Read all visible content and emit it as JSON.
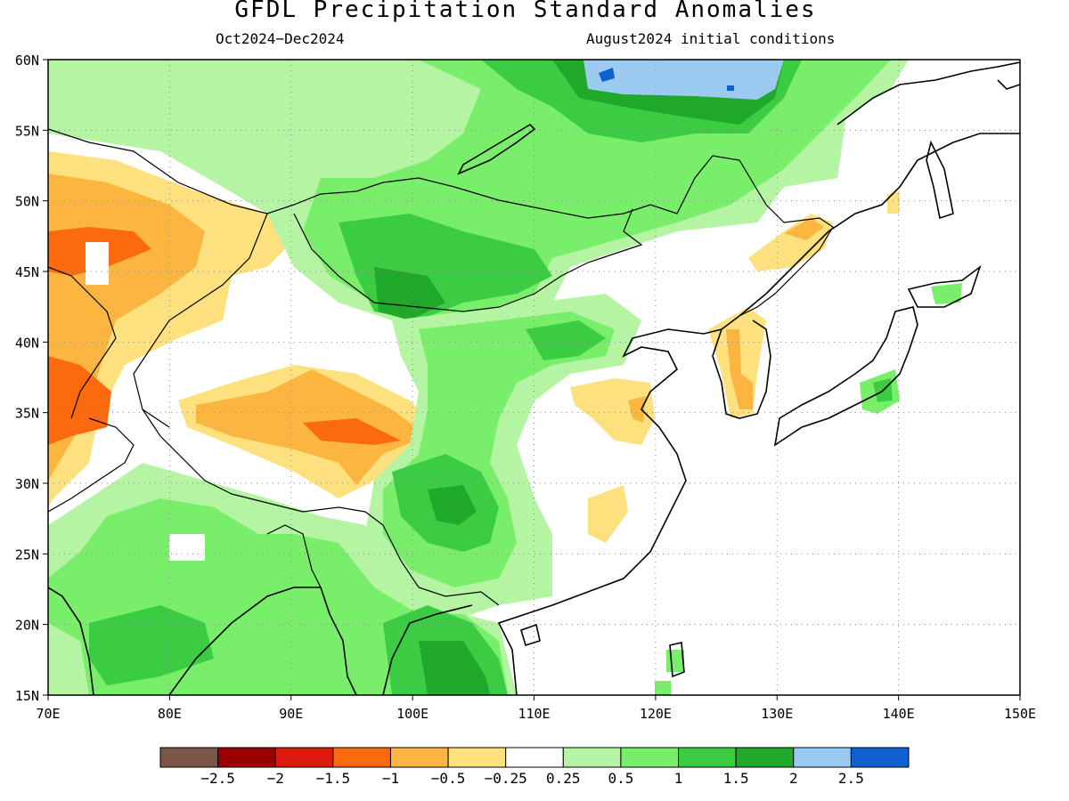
{
  "title": "GFDL Precipitation Standard Anomalies",
  "subtitle_left": "Oct2024−Dec2024",
  "subtitle_right": "August2024 initial conditions",
  "map": {
    "lon_range": [
      70,
      150
    ],
    "lat_range": [
      15,
      60
    ],
    "lon_ticks": [
      "70E",
      "80E",
      "90E",
      "100E",
      "110E",
      "120E",
      "130E",
      "140E",
      "150E"
    ],
    "lat_ticks": [
      "15N",
      "20N",
      "25N",
      "30N",
      "35N",
      "40N",
      "45N",
      "50N",
      "55N",
      "60N"
    ],
    "grid": "dotted",
    "palette": {
      "very_dry": "#7a5548",
      "dry_25": "#9b0000",
      "dry_2": "#dd1b0a",
      "dry_15": "#fb6a0c",
      "dry_1": "#fcb541",
      "dry_05": "#fde17e",
      "neutral": "#ffffff",
      "wet_025": "#b4f4a2",
      "wet_05": "#78ee6b",
      "wet_1": "#3bcc44",
      "wet_15": "#1fa82a",
      "wet_2": "#9ccbf2",
      "wet_25": "#1060d0"
    }
  },
  "colorbar": {
    "colors": [
      "#7a5548",
      "#9b0000",
      "#dd1b0a",
      "#fb6a0c",
      "#fcb541",
      "#fde17e",
      "#ffffff",
      "#b4f4a2",
      "#78ee6b",
      "#3bcc44",
      "#1fa82a",
      "#9ccbf2",
      "#1060d0"
    ],
    "labels": [
      "−2.5",
      "−2",
      "−1.5",
      "−1",
      "−0.5",
      "−0.25",
      "0.25",
      "0.5",
      "1",
      "1.5",
      "2",
      "2.5"
    ]
  }
}
